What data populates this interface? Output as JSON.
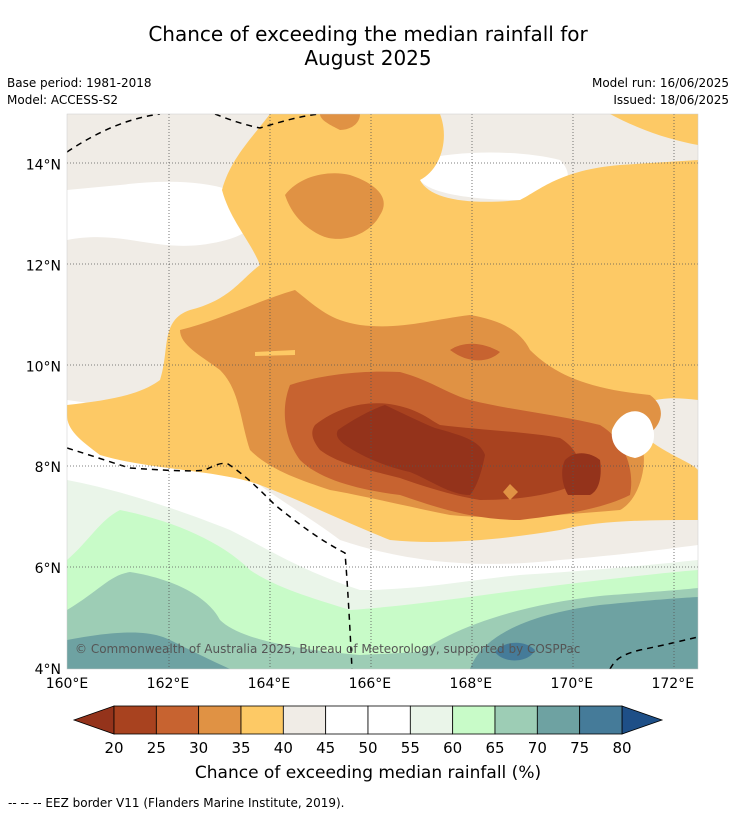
{
  "title_line1": "Chance of exceeding the median rainfall for",
  "title_line2": "August 2025",
  "base_period": "Base period: 1981-2018",
  "model": "Model: ACCESS-S2",
  "model_run": "Model run: 16/06/2025",
  "issued": "Issued: 18/06/2025",
  "copyright": "© Commonwealth of Australia 2025, Bureau of Meteorology, supported by COSPPac",
  "colorbar_label": "Chance of exceeding median rainfall (%)",
  "footnote": "--  --  -- EEZ border V11 (Flanders Marine Institute, 2019).",
  "chart_data": {
    "type": "heatmap",
    "x_ticks": [
      "160°E",
      "162°E",
      "164°E",
      "166°E",
      "168°E",
      "170°E",
      "172°E"
    ],
    "y_ticks": [
      "4°N",
      "6°N",
      "8°N",
      "10°N",
      "12°N",
      "14°N"
    ],
    "xlim": [
      160,
      172.5
    ],
    "ylim": [
      4,
      15
    ],
    "grid": true,
    "colorbar": {
      "levels": [
        20,
        25,
        30,
        35,
        40,
        45,
        50,
        55,
        60,
        65,
        70,
        75,
        80
      ],
      "colors": [
        "#a8421f",
        "#c76330",
        "#e09244",
        "#fdc965",
        "#f0ece6",
        "#ffffff",
        "#ffffff",
        "#eaf5e9",
        "#c8fbc8",
        "#9dcdb5",
        "#6ea2a2",
        "#457b99"
      ],
      "under_color": "#94331b",
      "over_color": "#1e4f87"
    }
  }
}
